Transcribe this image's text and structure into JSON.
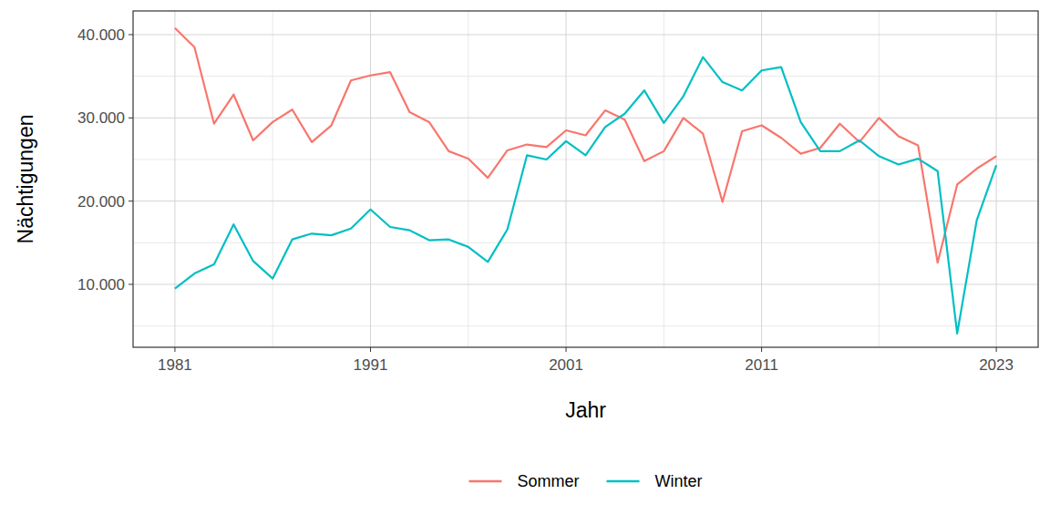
{
  "chart_data": {
    "type": "line",
    "x_label": "Jahr",
    "y_label": "Nächtigungen",
    "x": [
      1981,
      1982,
      1983,
      1984,
      1985,
      1986,
      1987,
      1988,
      1989,
      1990,
      1991,
      1992,
      1993,
      1994,
      1995,
      1996,
      1997,
      1998,
      1999,
      2000,
      2001,
      2002,
      2003,
      2004,
      2005,
      2006,
      2007,
      2008,
      2009,
      2010,
      2011,
      2012,
      2013,
      2014,
      2015,
      2016,
      2017,
      2018,
      2019,
      2020,
      2021,
      2022,
      2023
    ],
    "series": [
      {
        "name": "Sommer",
        "color": "#F8766D",
        "values": [
          40800,
          38500,
          29300,
          32800,
          27300,
          29500,
          31000,
          27100,
          29100,
          34500,
          35100,
          35500,
          30700,
          29500,
          26000,
          25100,
          22800,
          26100,
          26800,
          26500,
          28500,
          27900,
          30900,
          29800,
          24800,
          26000,
          30000,
          28100,
          19900,
          28400,
          29100,
          27600,
          25700,
          26400,
          29300,
          27100,
          30000,
          27800,
          26700,
          12600,
          22000,
          23900,
          25400
        ]
      },
      {
        "name": "Winter",
        "color": "#00BFC4",
        "values": [
          9500,
          11300,
          12400,
          17200,
          12800,
          10700,
          15400,
          16100,
          15900,
          16700,
          19000,
          16900,
          16500,
          15300,
          15400,
          14500,
          12700,
          16600,
          25500,
          25000,
          27200,
          25500,
          28900,
          30500,
          33300,
          29400,
          32600,
          37300,
          34300,
          33300,
          35700,
          36100,
          29500,
          26000,
          26000,
          27300,
          25400,
          24400,
          25100,
          23600,
          4100,
          17700,
          24300
        ]
      }
    ],
    "xlim": [
      1978.86,
      2025.14
    ],
    "xticks": [
      1981,
      1991,
      2001,
      2011,
      2023
    ],
    "ylim": [
      2444,
      42847
    ],
    "yticks": [
      {
        "value": 10000,
        "label": "10.000"
      },
      {
        "value": 20000,
        "label": "20.000"
      },
      {
        "value": 30000,
        "label": "30.000"
      },
      {
        "value": 40000,
        "label": "40.000"
      }
    ],
    "grid": true,
    "legend": "bottom"
  }
}
